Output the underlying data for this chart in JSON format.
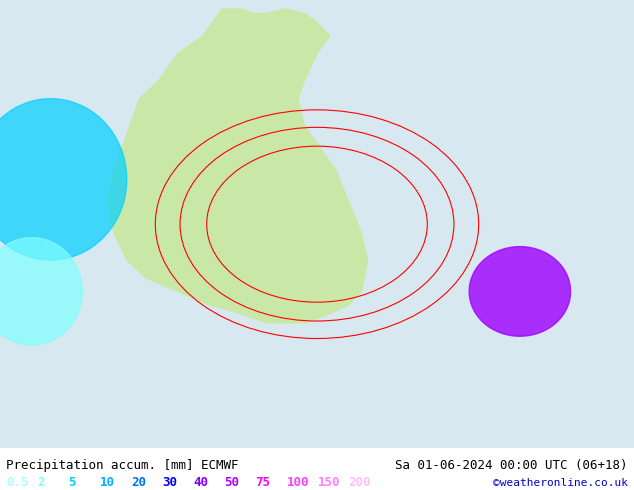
{
  "title_left": "Precipitation accum. [mm] ECMWF",
  "title_right": "Sa 01-06-2024 00:00 UTC (06+18)",
  "credit": "©weatheronline.co.uk",
  "legend_values": [
    "0.5",
    "2",
    "5",
    "10",
    "20",
    "30",
    "40",
    "50",
    "75",
    "100",
    "150",
    "200"
  ],
  "legend_colors": [
    "#afffff",
    "#7fffff",
    "#00cfff",
    "#00afff",
    "#0070ff",
    "#0000ff",
    "#7f00ff",
    "#af00ff",
    "#ff00ff",
    "#ff40ff",
    "#ff80ff",
    "#ffbfff"
  ],
  "bg_color": "#e8e8e8",
  "map_bg": "#f0f0f0",
  "bottom_bar_color": "#ffffff",
  "title_fontsize": 9,
  "legend_fontsize": 9,
  "credit_fontsize": 8
}
